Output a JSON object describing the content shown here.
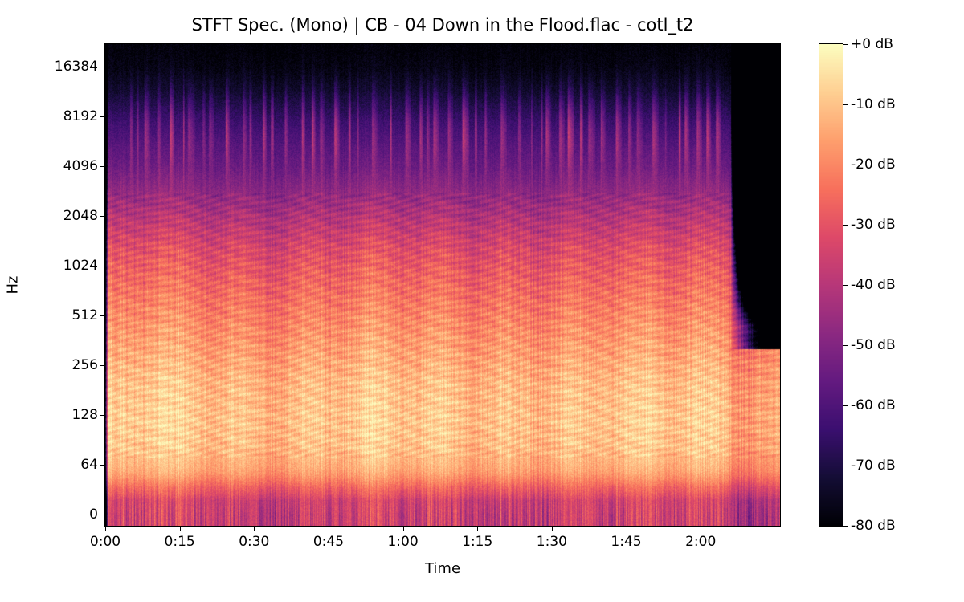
{
  "figure": {
    "title": "STFT Spec. (Mono) | CB - 04 Down in the Flood.flac - cotl_t2",
    "xlabel": "Time",
    "ylabel": "Hz"
  },
  "chart_data": {
    "type": "heatmap",
    "subtype": "stft-spectrogram",
    "title": "STFT Spec. (Mono) | CB - 04 Down in the Flood.flac - cotl_t2",
    "xlabel": "Time",
    "ylabel": "Hz",
    "grid": false,
    "x_tick_labels": [
      "0:00",
      "0:15",
      "0:30",
      "0:45",
      "1:00",
      "1:15",
      "1:30",
      "1:45",
      "2:00"
    ],
    "x_tick_seconds": [
      0,
      15,
      30,
      45,
      60,
      75,
      90,
      105,
      120
    ],
    "x_range_seconds": [
      0,
      136
    ],
    "y_tick_labels": [
      "16384",
      "8192",
      "4096",
      "2048",
      "1024",
      "512",
      "256",
      "128",
      "64",
      "0"
    ],
    "y_tick_hz": [
      16384,
      8192,
      4096,
      2048,
      1024,
      512,
      256,
      128,
      64,
      0
    ],
    "y_scale": "log-symlog",
    "y_max_hz": 22050,
    "content_end_seconds": 126,
    "seed": 20240131,
    "colorbar": {
      "tick_labels": [
        "+0 dB",
        "-10 dB",
        "-20 dB",
        "-30 dB",
        "-40 dB",
        "-50 dB",
        "-60 dB",
        "-70 dB",
        "-80 dB"
      ],
      "max_db": 0,
      "min_db": -80,
      "colormap": "magma",
      "stops": [
        {
          "pos": 0.0,
          "color": "#000004"
        },
        {
          "pos": 0.1,
          "color": "#140d36"
        },
        {
          "pos": 0.2,
          "color": "#3b0f70"
        },
        {
          "pos": 0.3,
          "color": "#641a80"
        },
        {
          "pos": 0.4,
          "color": "#8c2981"
        },
        {
          "pos": 0.5,
          "color": "#b73779"
        },
        {
          "pos": 0.6,
          "color": "#de4968"
        },
        {
          "pos": 0.7,
          "color": "#f7705c"
        },
        {
          "pos": 0.8,
          "color": "#fe9f6d"
        },
        {
          "pos": 0.9,
          "color": "#fecf92"
        },
        {
          "pos": 1.0,
          "color": "#fcfdbf"
        }
      ]
    },
    "band_profile_db": [
      {
        "hz": 0,
        "db": -37
      },
      {
        "hz": 18,
        "db": -36
      },
      {
        "hz": 35,
        "db": -27
      },
      {
        "hz": 55,
        "db": -16
      },
      {
        "hz": 80,
        "db": -11
      },
      {
        "hz": 120,
        "db": -10
      },
      {
        "hz": 200,
        "db": -12
      },
      {
        "hz": 300,
        "db": -16
      },
      {
        "hz": 450,
        "db": -20
      },
      {
        "hz": 650,
        "db": -24
      },
      {
        "hz": 900,
        "db": -28
      },
      {
        "hz": 1300,
        "db": -33
      },
      {
        "hz": 1900,
        "db": -40
      },
      {
        "hz": 2800,
        "db": -48
      },
      {
        "hz": 4000,
        "db": -55
      },
      {
        "hz": 5500,
        "db": -59
      },
      {
        "hz": 7500,
        "db": -64
      },
      {
        "hz": 9500,
        "db": -69
      },
      {
        "hz": 12000,
        "db": -74
      },
      {
        "hz": 16000,
        "db": -78
      },
      {
        "hz": 22050,
        "db": -80
      }
    ],
    "hf_burst_band_hz": [
      4500,
      10000
    ]
  }
}
